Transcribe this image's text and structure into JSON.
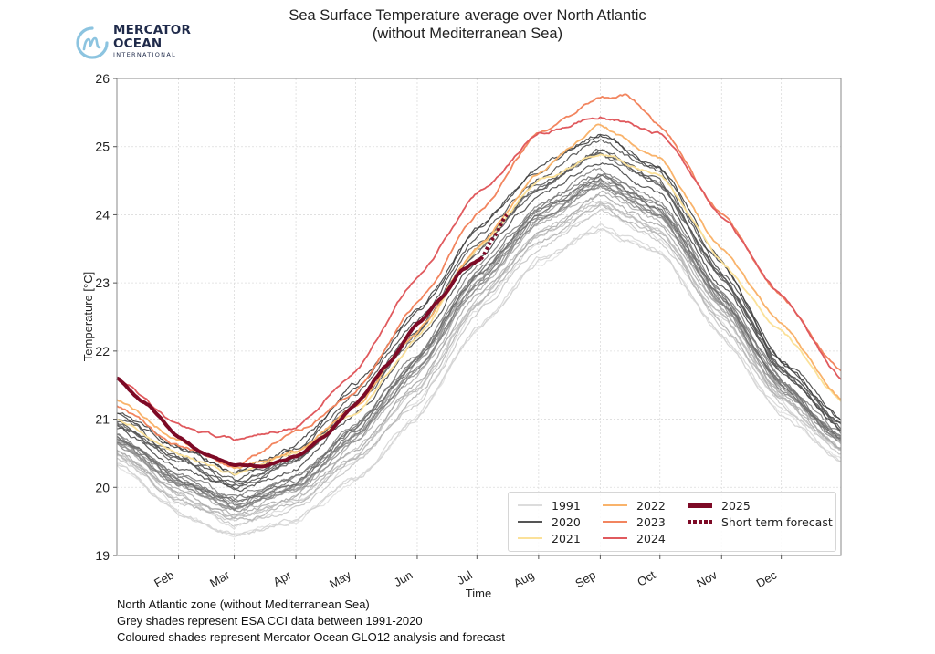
{
  "header": {
    "title_line1": "Sea Surface Temperature average over North Atlantic",
    "title_line2": "(without Mediterranean Sea)"
  },
  "logo": {
    "line1": "MERCATOR",
    "line2": "OCEAN",
    "line3": "INTERNATIONAL",
    "color": "#1f2a4a",
    "accent": "#8cc4e0"
  },
  "footnotes": [
    "North Atlantic zone (without Mediterranean Sea)",
    "Grey shades represent ESA CCI data between 1991-2020",
    "Coloured shades represent Mercator Ocean GLO12 analysis and forecast"
  ],
  "chart_data": {
    "type": "line",
    "title": "Sea Surface Temperature average over North Atlantic (without Mediterranean Sea)",
    "xlabel": "Time",
    "ylabel": "Temperature [°C]",
    "ylim": [
      19,
      26
    ],
    "xlim_day_of_year": [
      1,
      365
    ],
    "yticks": [
      "19",
      "20",
      "21",
      "22",
      "23",
      "24",
      "25",
      "26"
    ],
    "xticks": [
      {
        "label": "Feb",
        "day": 32
      },
      {
        "label": "Mar",
        "day": 60
      },
      {
        "label": "Apr",
        "day": 91
      },
      {
        "label": "May",
        "day": 121
      },
      {
        "label": "Jun",
        "day": 152
      },
      {
        "label": "Jul",
        "day": 182
      },
      {
        "label": "Aug",
        "day": 213
      },
      {
        "label": "Sep",
        "day": 244
      },
      {
        "label": "Oct",
        "day": 274
      },
      {
        "label": "Nov",
        "day": 305
      },
      {
        "label": "Dec",
        "day": 335
      }
    ],
    "grid": true,
    "legend_position": "lower-right",
    "legend": [
      {
        "label": "1991",
        "color": "#dcdcdc",
        "style": "solid"
      },
      {
        "label": "2020",
        "color": "#555555",
        "style": "solid"
      },
      {
        "label": "2021",
        "color": "#fbe199",
        "style": "solid"
      },
      {
        "label": "2022",
        "color": "#f9b36b",
        "style": "solid"
      },
      {
        "label": "2023",
        "color": "#f2855f",
        "style": "solid"
      },
      {
        "label": "2024",
        "color": "#e05a5e",
        "style": "solid"
      },
      {
        "label": "2025",
        "color": "#7d0a26",
        "style": "thick"
      },
      {
        "label": "Short term forecast",
        "color": "#7d0a26",
        "style": "dotted"
      }
    ],
    "climatology_envelope": {
      "label": "1991-2020 (grey shades)",
      "days": [
        1,
        32,
        60,
        91,
        121,
        152,
        182,
        213,
        244,
        274,
        305,
        335,
        365
      ],
      "low": [
        20.3,
        19.6,
        19.3,
        19.5,
        20.1,
        21.0,
        22.3,
        23.3,
        23.8,
        23.4,
        22.2,
        21.1,
        20.4
      ],
      "high": [
        21.1,
        20.6,
        20.2,
        20.6,
        21.5,
        22.6,
        23.8,
        24.7,
        25.2,
        24.7,
        23.3,
        21.9,
        21.0
      ]
    },
    "series": [
      {
        "name": "2021",
        "color": "#fbe199",
        "days": [
          1,
          32,
          60,
          91,
          121,
          152,
          182,
          213,
          244,
          274,
          305,
          335,
          365
        ],
        "values": [
          21.0,
          20.5,
          20.2,
          20.5,
          21.1,
          22.2,
          23.5,
          24.5,
          24.9,
          24.6,
          23.3,
          22.3,
          21.3
        ]
      },
      {
        "name": "2022",
        "color": "#f9b36b",
        "days": [
          1,
          32,
          60,
          91,
          121,
          152,
          182,
          213,
          244,
          274,
          305,
          335,
          365
        ],
        "values": [
          21.3,
          20.7,
          20.3,
          20.5,
          21.2,
          22.3,
          23.5,
          24.6,
          25.3,
          24.8,
          23.5,
          22.4,
          21.3
        ]
      },
      {
        "name": "2023",
        "color": "#f2855f",
        "days": [
          1,
          32,
          60,
          91,
          121,
          152,
          182,
          213,
          244,
          257,
          274,
          305,
          335,
          365
        ],
        "values": [
          21.2,
          20.6,
          20.3,
          20.8,
          21.4,
          22.7,
          24.0,
          25.2,
          25.7,
          25.75,
          25.3,
          24.0,
          22.8,
          21.7
        ]
      },
      {
        "name": "2024",
        "color": "#e05a5e",
        "days": [
          1,
          32,
          60,
          91,
          121,
          152,
          182,
          213,
          244,
          274,
          305,
          335,
          365
        ],
        "values": [
          21.6,
          20.9,
          20.7,
          20.9,
          21.7,
          23.1,
          24.3,
          25.2,
          25.45,
          25.2,
          24.0,
          22.8,
          21.6
        ]
      },
      {
        "name": "2025",
        "color": "#7d0a26",
        "days": [
          1,
          15,
          32,
          45,
          60,
          75,
          91,
          105,
          121,
          137,
          152,
          165,
          175,
          184
        ],
        "values": [
          21.6,
          21.25,
          20.75,
          20.5,
          20.35,
          20.3,
          20.45,
          20.75,
          21.2,
          21.8,
          22.4,
          22.8,
          23.2,
          23.35
        ]
      },
      {
        "name": "Short term forecast",
        "color": "#7d0a26",
        "style": "dotted",
        "days": [
          184,
          190,
          197
        ],
        "values": [
          23.35,
          23.65,
          24.0
        ]
      }
    ]
  }
}
